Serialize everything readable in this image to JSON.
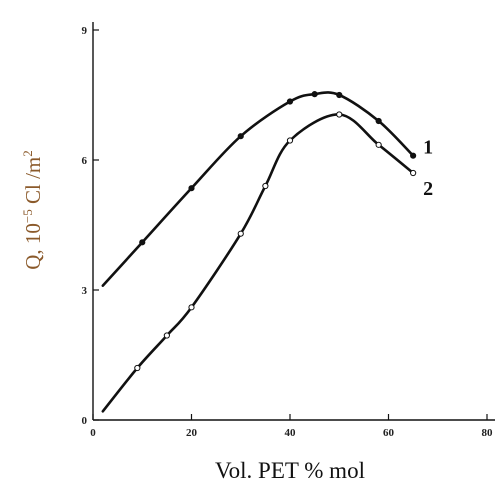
{
  "chart_data": {
    "type": "line",
    "xlabel": "Vol. PET % mol",
    "ylabel": {
      "prefix": "Q, 10",
      "exp1": "−5",
      "mid": " Cl /m",
      "exp2": "2"
    },
    "xlim": [
      0,
      80
    ],
    "ylim": [
      0,
      9
    ],
    "xticks": [
      0,
      20,
      40,
      60,
      80
    ],
    "yticks": [
      0,
      3,
      6,
      9
    ],
    "grid": false,
    "ylabel_color": "#8b5a2b",
    "series": [
      {
        "name": "1",
        "color": "#111111",
        "points": [
          [
            2,
            3.1
          ],
          [
            10,
            4.1
          ],
          [
            20,
            5.35
          ],
          [
            30,
            6.55
          ],
          [
            40,
            7.35
          ],
          [
            45,
            7.52
          ],
          [
            50,
            7.5
          ],
          [
            58,
            6.9
          ],
          [
            65,
            6.1
          ]
        ]
      },
      {
        "name": "2",
        "color": "#111111",
        "points": [
          [
            2,
            0.2
          ],
          [
            9,
            1.2
          ],
          [
            15,
            1.95
          ],
          [
            20,
            2.6
          ],
          [
            30,
            4.3
          ],
          [
            35,
            5.4
          ],
          [
            40,
            6.45
          ],
          [
            50,
            7.05
          ],
          [
            58,
            6.35
          ],
          [
            65,
            5.7
          ]
        ]
      }
    ]
  }
}
